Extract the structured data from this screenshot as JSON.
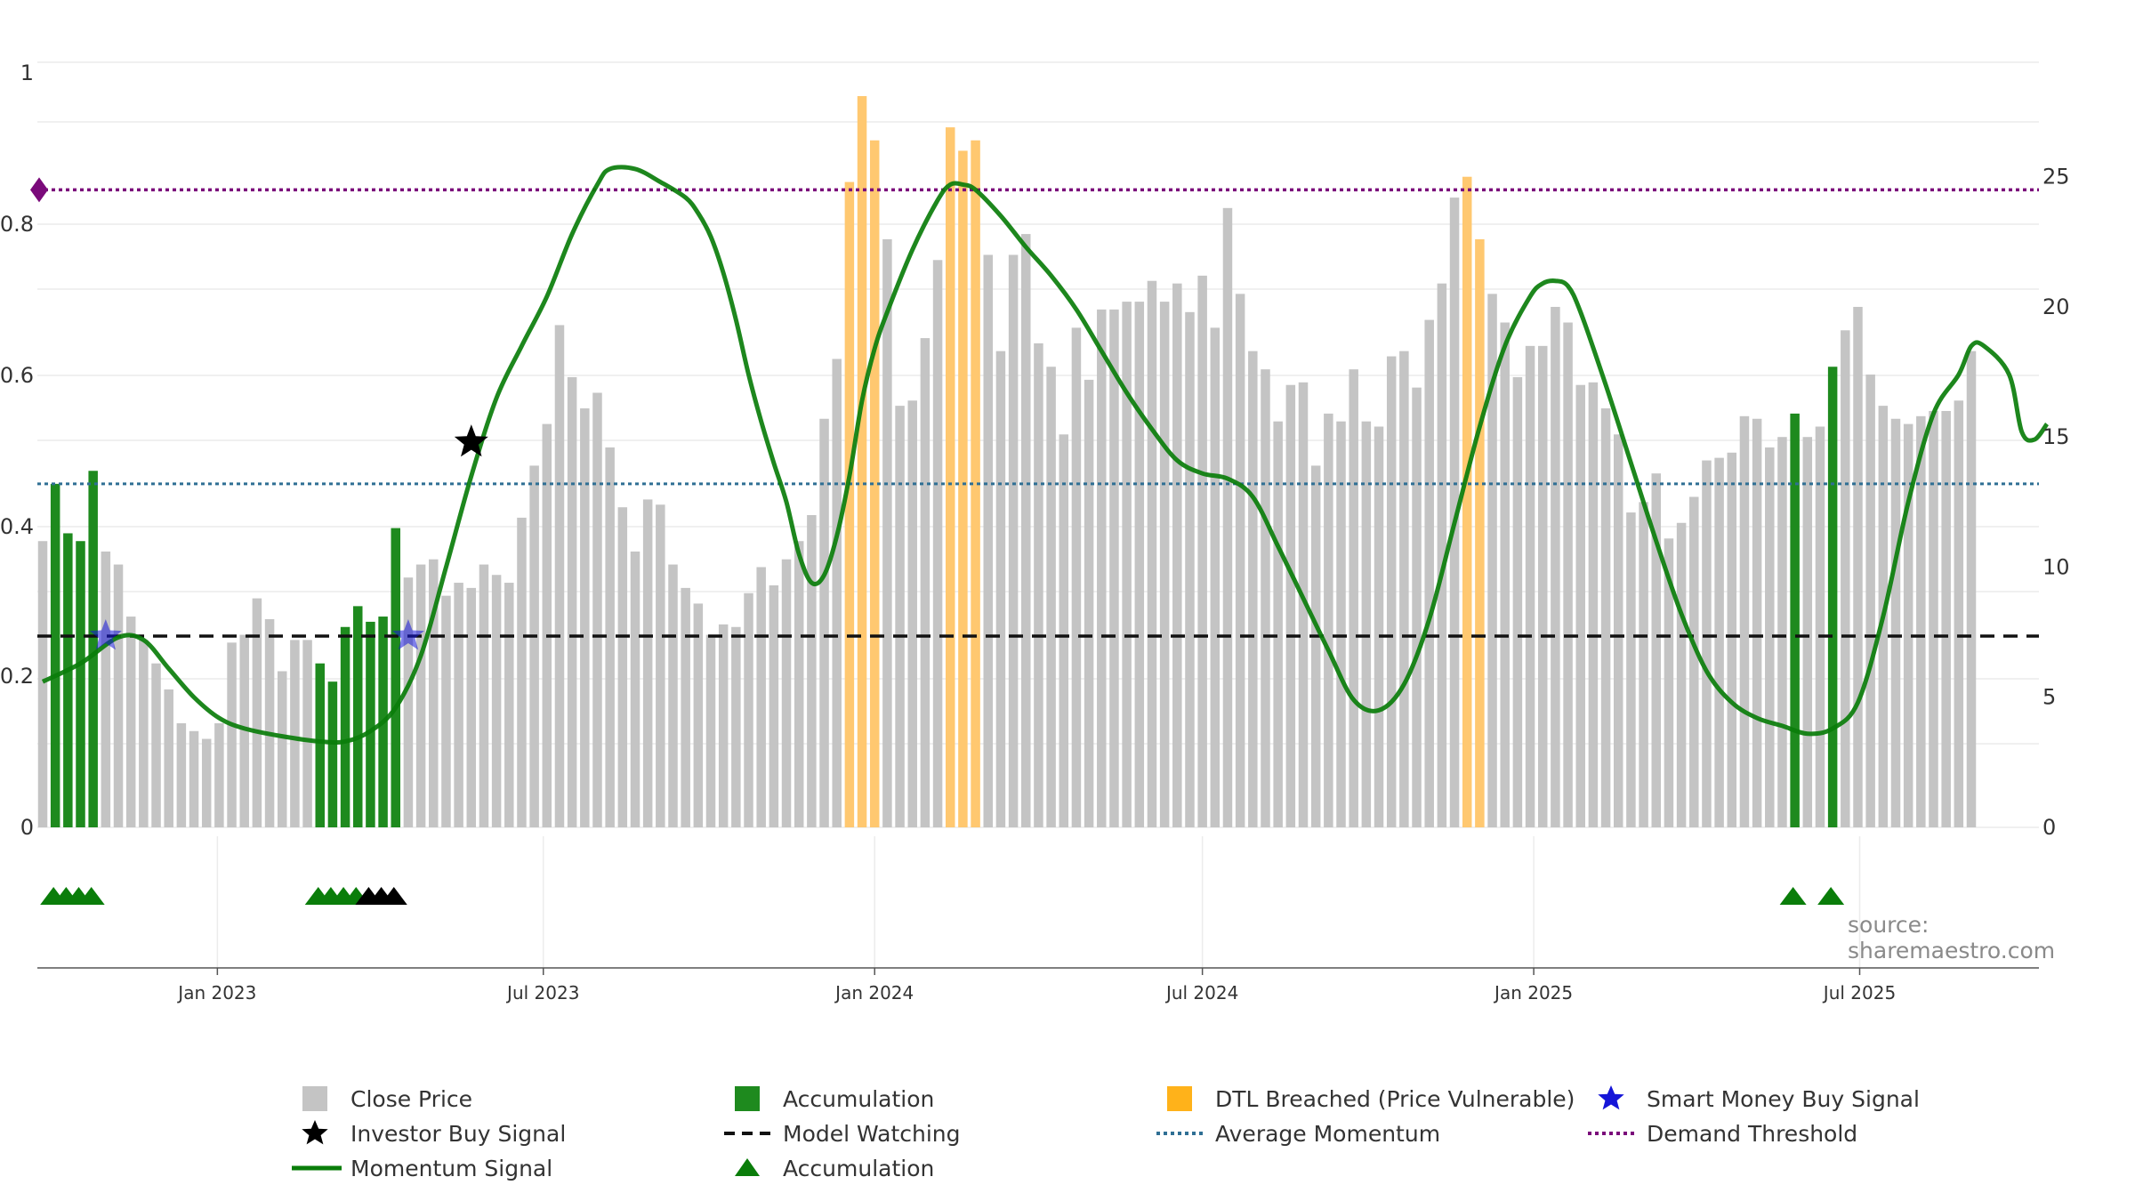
{
  "source_text": "source: sharemaestro.com",
  "colors": {
    "close": "#c4c4c4",
    "accumulation": "#1e8a1e",
    "dtl": "#ffc870",
    "momentum": "#0a7d0a",
    "model_watching": "#111111",
    "average_momentum": "#2f6f94",
    "demand_threshold": "#7a0a7a",
    "smart_money": "#1515d8",
    "investor_buy": "#000000"
  },
  "legend": {
    "close_price": "Close Price",
    "accumulation_bar": "Accumulation",
    "dtl": "DTL Breached (Price Vulnerable)",
    "smart_money": "Smart Money Buy Signal",
    "investor_buy": "Investor Buy Signal",
    "model_watching": "Model Watching",
    "average_momentum": "Average Momentum",
    "demand_threshold": "Demand Threshold",
    "momentum_signal": "Momentum Signal",
    "accumulation_marker": "Accumulation"
  },
  "chart_data": {
    "type": "bar",
    "x_start": "2022-09-26",
    "x_step_days": 7,
    "x_tick_labels": [
      "Jan 2023",
      "Jul 2023",
      "Jan 2024",
      "Jul 2024",
      "Jan 2025",
      "Jul 2025"
    ],
    "x_tick_dates": [
      "2023-01-01",
      "2023-07-01",
      "2024-01-01",
      "2024-07-01",
      "2025-01-01",
      "2025-07-01"
    ],
    "y_left_ticks": [
      "0",
      "0.2",
      "0.4",
      "0.6",
      "0.8",
      "1"
    ],
    "y_left_range": [
      0,
      1
    ],
    "y_right_ticks": [
      "0",
      "5",
      "10",
      "15",
      "20",
      "25"
    ],
    "y_right_range": [
      0,
      29.4
    ],
    "grid": true,
    "close_price": [
      11.0,
      13.2,
      11.3,
      11.0,
      13.7,
      10.6,
      10.1,
      8.1,
      7.2,
      6.3,
      5.3,
      4.0,
      3.7,
      3.4,
      4.0,
      7.1,
      7.4,
      8.8,
      8.0,
      6.0,
      7.2,
      7.2,
      6.3,
      5.6,
      7.7,
      8.5,
      7.9,
      8.1,
      11.5,
      9.6,
      10.1,
      10.3,
      8.9,
      9.4,
      9.2,
      10.1,
      9.7,
      9.4,
      11.9,
      13.9,
      15.5,
      19.3,
      17.3,
      16.1,
      16.7,
      14.6,
      12.3,
      10.6,
      12.6,
      12.4,
      10.1,
      9.2,
      8.6,
      7.4,
      7.8,
      7.7,
      9.0,
      10.0,
      9.3,
      10.3,
      11.0,
      12.0,
      15.7,
      18.0,
      24.8,
      28.1,
      26.4,
      22.6,
      16.2,
      16.4,
      18.8,
      21.8,
      26.9,
      26.0,
      26.4,
      22.0,
      18.3,
      22.0,
      22.8,
      18.6,
      17.7,
      15.1,
      19.2,
      17.2,
      19.9,
      19.9,
      20.2,
      20.2,
      21.0,
      20.2,
      20.9,
      19.8,
      21.2,
      19.2,
      23.8,
      20.5,
      18.3,
      17.6,
      15.6,
      17.0,
      17.1,
      13.9,
      15.9,
      15.6,
      17.6,
      15.6,
      15.4,
      18.1,
      18.3,
      16.9,
      19.5,
      20.9,
      24.2,
      25.0,
      22.6,
      20.5,
      19.4,
      17.3,
      18.5,
      18.5,
      20.0,
      19.4,
      17.0,
      17.1,
      16.1,
      15.1,
      12.1,
      12.5,
      13.6,
      11.1,
      11.7,
      12.7,
      14.1,
      14.2,
      14.4,
      15.8,
      15.7,
      14.6,
      15.0,
      15.9,
      15.0,
      15.4,
      17.7,
      19.1,
      20.0,
      17.4,
      16.2,
      15.7,
      15.5,
      15.8,
      16.0,
      16.0,
      16.4,
      18.3
    ],
    "accumulation_bars": [
      1,
      2,
      3,
      4,
      22,
      23,
      24,
      25,
      26,
      27,
      28,
      139,
      142
    ],
    "dtl_bars": [
      64,
      65,
      66,
      72,
      73,
      74,
      113,
      114
    ],
    "momentum_signal": [
      [
        0,
        5.6
      ],
      [
        3,
        6.3
      ],
      [
        6,
        7.3
      ],
      [
        8,
        7.2
      ],
      [
        10,
        6.1
      ],
      [
        12,
        5.0
      ],
      [
        14,
        4.2
      ],
      [
        16,
        3.8
      ],
      [
        19,
        3.5
      ],
      [
        22,
        3.3
      ],
      [
        24,
        3.3
      ],
      [
        26,
        3.7
      ],
      [
        28,
        4.6
      ],
      [
        30,
        6.6
      ],
      [
        32,
        10.0
      ],
      [
        34,
        13.5
      ],
      [
        36,
        16.5
      ],
      [
        38,
        18.5
      ],
      [
        40,
        20.4
      ],
      [
        42,
        22.8
      ],
      [
        44,
        24.7
      ],
      [
        45,
        25.3
      ],
      [
        47,
        25.3
      ],
      [
        49,
        24.8
      ],
      [
        51,
        24.2
      ],
      [
        52,
        23.6
      ],
      [
        53,
        22.7
      ],
      [
        54,
        21.3
      ],
      [
        55,
        19.5
      ],
      [
        56,
        17.4
      ],
      [
        57,
        15.6
      ],
      [
        58,
        14.0
      ],
      [
        59,
        12.5
      ],
      [
        60,
        10.5
      ],
      [
        61,
        9.4
      ],
      [
        62,
        9.7
      ],
      [
        63,
        11.2
      ],
      [
        64,
        13.5
      ],
      [
        65,
        16.4
      ],
      [
        66,
        18.4
      ],
      [
        67,
        19.8
      ],
      [
        69,
        22.2
      ],
      [
        71,
        24.1
      ],
      [
        72,
        24.7
      ],
      [
        73,
        24.7
      ],
      [
        74,
        24.5
      ],
      [
        76,
        23.5
      ],
      [
        78,
        22.3
      ],
      [
        80,
        21.2
      ],
      [
        82,
        19.9
      ],
      [
        84,
        18.3
      ],
      [
        86,
        16.7
      ],
      [
        88,
        15.3
      ],
      [
        90,
        14.1
      ],
      [
        92,
        13.6
      ],
      [
        94,
        13.4
      ],
      [
        96,
        12.7
      ],
      [
        98,
        10.8
      ],
      [
        100,
        8.8
      ],
      [
        102,
        6.8
      ],
      [
        104,
        4.9
      ],
      [
        106,
        4.5
      ],
      [
        108,
        5.5
      ],
      [
        110,
        8.0
      ],
      [
        112,
        11.7
      ],
      [
        114,
        15.4
      ],
      [
        116,
        18.5
      ],
      [
        118,
        20.4
      ],
      [
        119,
        20.9
      ],
      [
        120,
        21.0
      ],
      [
        121,
        20.8
      ],
      [
        122,
        19.8
      ],
      [
        124,
        17.0
      ],
      [
        126,
        14.0
      ],
      [
        128,
        11.0
      ],
      [
        130,
        8.2
      ],
      [
        132,
        6.0
      ],
      [
        134,
        4.8
      ],
      [
        136,
        4.2
      ],
      [
        138,
        3.9
      ],
      [
        140,
        3.6
      ],
      [
        142,
        3.8
      ],
      [
        144,
        4.8
      ],
      [
        146,
        8.1
      ],
      [
        148,
        12.5
      ],
      [
        150,
        15.9
      ],
      [
        152,
        17.4
      ],
      [
        153,
        18.5
      ],
      [
        154,
        18.5
      ],
      [
        156,
        17.4
      ],
      [
        157,
        15.2
      ],
      [
        158,
        14.9
      ],
      [
        159,
        15.5
      ]
    ],
    "model_watching_level": 7.35,
    "average_momentum_level": 13.2,
    "demand_threshold_level": 24.5,
    "smart_money_signals": [
      [
        5,
        7.35
      ],
      [
        29,
        7.35
      ]
    ],
    "investor_buy_signals": [
      [
        34,
        14.8
      ]
    ],
    "accumulation_markers_green": [
      1,
      2,
      3,
      4,
      22,
      23,
      24,
      25,
      139,
      142
    ],
    "accumulation_markers_black": [
      26,
      27,
      28
    ]
  }
}
